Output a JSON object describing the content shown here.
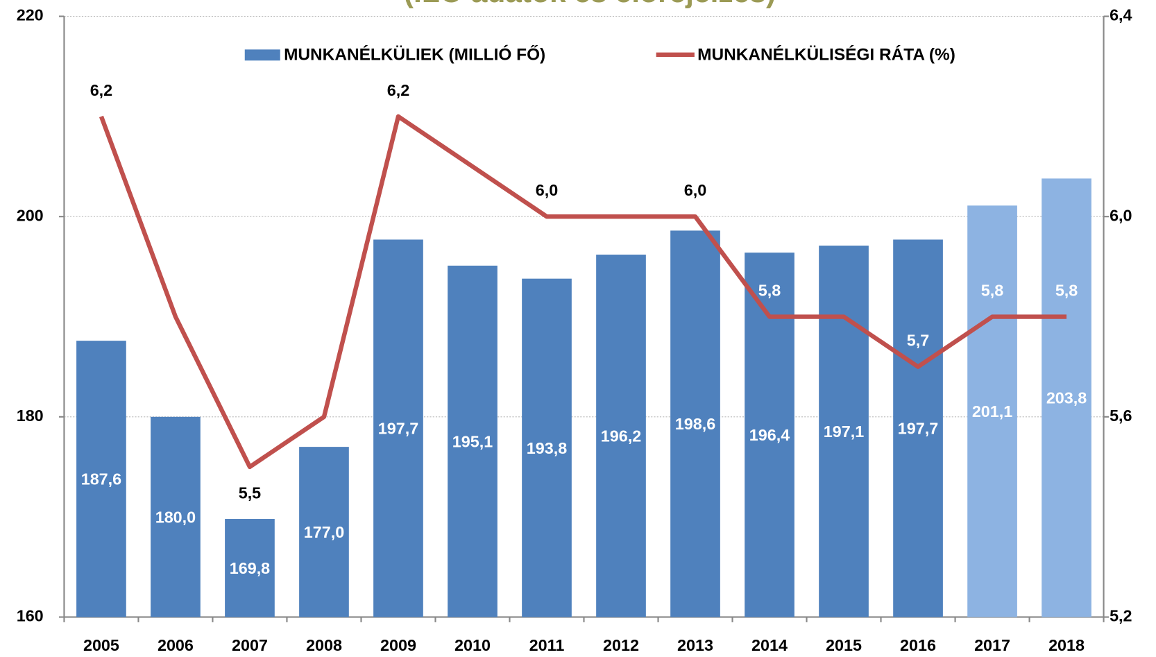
{
  "chart_data": {
    "type": "bar-line",
    "title": "(ILO adatok és előrejelzés)",
    "categories": [
      "2005",
      "2006",
      "2007",
      "2008",
      "2009",
      "2010",
      "2011",
      "2012",
      "2013",
      "2014",
      "2015",
      "2016",
      "2017",
      "2018"
    ],
    "series": [
      {
        "name": "MUNKANÉLKÜLIEK (MILLIÓ FŐ)",
        "type": "bar",
        "color": "#4f81bd",
        "colors": [
          "#4f81bd",
          "#4f81bd",
          "#4f81bd",
          "#4f81bd",
          "#4f81bd",
          "#4f81bd",
          "#4f81bd",
          "#4f81bd",
          "#4f81bd",
          "#4f81bd",
          "#4f81bd",
          "#4f81bd",
          "#8db3e2",
          "#8db3e2"
        ],
        "values": [
          187.6,
          180.0,
          169.8,
          177.0,
          197.7,
          195.1,
          193.8,
          196.2,
          198.6,
          196.4,
          197.1,
          197.7,
          201.1,
          203.8
        ],
        "value_labels": [
          "187,6",
          "180,0",
          "169,8",
          "177,0",
          "197,7",
          "195,1",
          "193,8",
          "196,2",
          "198,6",
          "196,4",
          "197,1",
          "197,7",
          "201,1",
          "203,8"
        ]
      },
      {
        "name": "MUNKANÉLKÜLISÉGI RÁTA (%)",
        "type": "line",
        "axis": "y2",
        "color": "#c0504d",
        "values": [
          6.2,
          5.8,
          5.5,
          5.6,
          6.2,
          6.1,
          6.0,
          6.0,
          6.0,
          5.8,
          5.8,
          5.7,
          5.8,
          5.8
        ],
        "value_labels": [
          "6,2",
          null,
          "5,5",
          null,
          "6,2",
          null,
          "6,0",
          null,
          "6,0",
          "5,8",
          null,
          "5,7",
          "5,8",
          "5,8"
        ],
        "value_label_colors": [
          "#000",
          "#000",
          "#000",
          "#000",
          "#000",
          "#000",
          "#000",
          "#000",
          "#000",
          "#fff",
          "#fff",
          "#fff",
          "#fff",
          "#fff"
        ]
      }
    ],
    "ylim": [
      160,
      220
    ],
    "yticks": [
      160,
      180,
      200,
      220
    ],
    "y2lim": [
      5.2,
      6.4
    ],
    "y2ticks": [
      {
        "value": 5.2,
        "label": "5,2"
      },
      {
        "value": 5.6,
        "label": "5,6"
      },
      {
        "value": 6.0,
        "label": "6,0"
      },
      {
        "value": 6.4,
        "label": "6,4"
      }
    ],
    "grid": true,
    "legend": "top"
  }
}
